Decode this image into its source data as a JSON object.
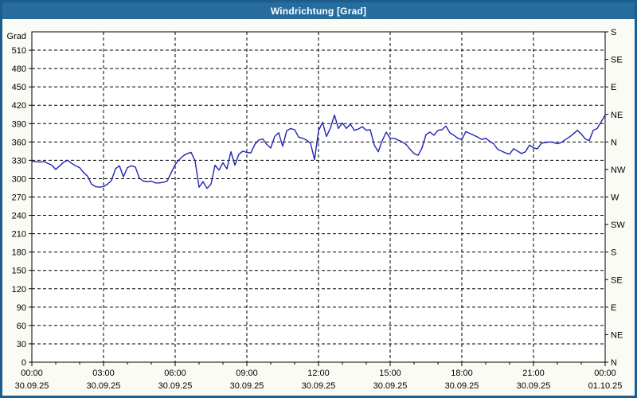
{
  "window": {
    "title": "Windrichtung [Grad]"
  },
  "colors": {
    "titlebar_bg": "#266d9e",
    "titlebar_text": "#ffffff",
    "frame_border": "#1d5c8f",
    "page_bg": "#fbfbf5",
    "plot_bg": "#ffffff",
    "axis": "#000000",
    "grid": "#000000",
    "tick_text": "#000000",
    "line": "#2323b4"
  },
  "chart_data": {
    "type": "line",
    "title": "Windrichtung [Grad]",
    "left_axis_label": "Grad",
    "ylim": [
      0,
      540
    ],
    "y_tick_step": 30,
    "y_ticks": [
      0,
      30,
      60,
      90,
      120,
      150,
      180,
      210,
      240,
      270,
      300,
      330,
      360,
      390,
      420,
      450,
      480,
      510
    ],
    "right_axis_ticks": [
      {
        "deg": 0,
        "label": "N"
      },
      {
        "deg": 45,
        "label": "NE"
      },
      {
        "deg": 90,
        "label": "E"
      },
      {
        "deg": 135,
        "label": "SE"
      },
      {
        "deg": 180,
        "label": "S"
      },
      {
        "deg": 225,
        "label": "SW"
      },
      {
        "deg": 270,
        "label": "W"
      },
      {
        "deg": 315,
        "label": "NW"
      },
      {
        "deg": 360,
        "label": "N"
      },
      {
        "deg": 405,
        "label": "NE"
      },
      {
        "deg": 450,
        "label": "E"
      },
      {
        "deg": 495,
        "label": "SE"
      },
      {
        "deg": 540,
        "label": "S"
      }
    ],
    "x_range_hours": [
      0,
      24
    ],
    "x_minor_tick_hours": 1,
    "x_major_ticks": [
      {
        "hour": 0,
        "time": "00:00",
        "date": "30.09.25"
      },
      {
        "hour": 3,
        "time": "03:00",
        "date": "30.09.25"
      },
      {
        "hour": 6,
        "time": "06:00",
        "date": "30.09.25"
      },
      {
        "hour": 9,
        "time": "09:00",
        "date": "30.09.25"
      },
      {
        "hour": 12,
        "time": "12:00",
        "date": "30.09.25"
      },
      {
        "hour": 15,
        "time": "15:00",
        "date": "30.09.25"
      },
      {
        "hour": 18,
        "time": "18:00",
        "date": "30.09.25"
      },
      {
        "hour": 21,
        "time": "21:00",
        "date": "30.09.25"
      },
      {
        "hour": 24,
        "time": "00:00",
        "date": "01.10.25"
      }
    ],
    "grid": "dashed",
    "legend": "none",
    "series": [
      {
        "name": "Windrichtung",
        "color": "#2323b4",
        "sample_interval_min": 10,
        "start": "30.09.25 00:00",
        "values": [
          328,
          328,
          327,
          328,
          325,
          322,
          315,
          321,
          327,
          330,
          325,
          321,
          318,
          310,
          304,
          291,
          287,
          286,
          287,
          291,
          297,
          316,
          321,
          303,
          318,
          321,
          319,
          301,
          296,
          295,
          296,
          293,
          293,
          294,
          296,
          310,
          323,
          331,
          337,
          341,
          343,
          329,
          286,
          295,
          284,
          291,
          322,
          314,
          326,
          316,
          344,
          322,
          340,
          345,
          343,
          342,
          356,
          363,
          365,
          356,
          350,
          369,
          375,
          353,
          378,
          382,
          380,
          368,
          366,
          363,
          358,
          331,
          378,
          392,
          369,
          383,
          404,
          382,
          391,
          382,
          389,
          379,
          381,
          385,
          379,
          380,
          355,
          344,
          362,
          376,
          366,
          366,
          363,
          360,
          356,
          348,
          341,
          338,
          350,
          372,
          376,
          371,
          379,
          380,
          386,
          375,
          371,
          366,
          364,
          377,
          374,
          371,
          368,
          364,
          366,
          361,
          357,
          348,
          345,
          342,
          340,
          349,
          345,
          341,
          344,
          355,
          350,
          349,
          358,
          359,
          360,
          359,
          357,
          359,
          364,
          368,
          373,
          379,
          373,
          365,
          362,
          379,
          382,
          393,
          404
        ]
      }
    ]
  }
}
